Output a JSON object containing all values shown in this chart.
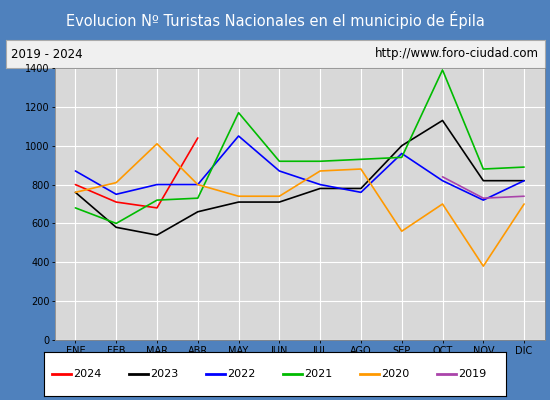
{
  "title": "Evolucion Nº Turistas Nacionales en el municipio de Épila",
  "subtitle_left": "2019 - 2024",
  "subtitle_right": "http://www.foro-ciudad.com",
  "months": [
    "ENE",
    "FEB",
    "MAR",
    "ABR",
    "MAY",
    "JUN",
    "JUL",
    "AGO",
    "SEP",
    "OCT",
    "NOV",
    "DIC"
  ],
  "ylim": [
    0,
    1400
  ],
  "yticks": [
    0,
    200,
    400,
    600,
    800,
    1000,
    1200,
    1400
  ],
  "series": {
    "2024": {
      "color": "#ff0000",
      "data": [
        800,
        710,
        680,
        1040,
        null,
        null,
        null,
        null,
        null,
        null,
        null,
        null
      ]
    },
    "2023": {
      "color": "#000000",
      "data": [
        760,
        580,
        540,
        660,
        710,
        710,
        780,
        780,
        1000,
        1130,
        820,
        820
      ]
    },
    "2022": {
      "color": "#0000ff",
      "data": [
        870,
        750,
        800,
        800,
        1050,
        870,
        800,
        760,
        960,
        820,
        720,
        820
      ]
    },
    "2021": {
      "color": "#00bb00",
      "data": [
        680,
        600,
        720,
        730,
        1170,
        920,
        920,
        930,
        940,
        1390,
        880,
        890
      ]
    },
    "2020": {
      "color": "#ff9900",
      "data": [
        760,
        810,
        1010,
        800,
        740,
        740,
        870,
        880,
        560,
        700,
        380,
        700
      ]
    },
    "2019": {
      "color": "#aa44aa",
      "data": [
        null,
        null,
        null,
        null,
        null,
        null,
        null,
        null,
        null,
        840,
        730,
        740
      ]
    }
  },
  "title_bg_color": "#4f81bd",
  "title_font_color": "#ffffff",
  "subtitle_bg_color": "#f0f0f0",
  "plot_bg_color": "#d8d8d8",
  "grid_color": "#ffffff",
  "border_color": "#000000",
  "fig_bg_color": "#4f81bd"
}
